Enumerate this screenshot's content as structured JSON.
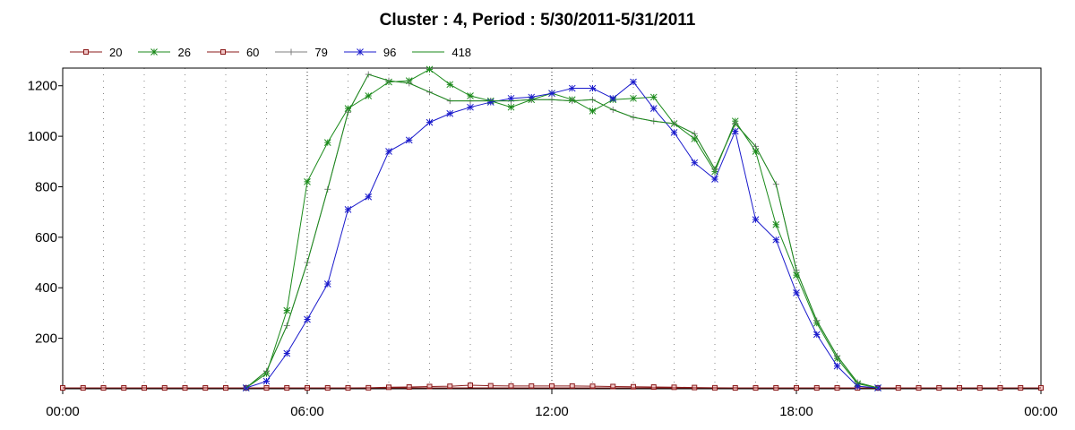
{
  "chart_data": {
    "type": "line",
    "title": "Cluster : 4, Period : 5/30/2011-5/31/2011",
    "xlabel": "",
    "ylabel": "",
    "x_ticks": [
      "00:00",
      "06:00",
      "12:00",
      "18:00",
      "00:00"
    ],
    "y_ticks": [
      200,
      400,
      600,
      800,
      1000,
      1200
    ],
    "xlim_hours": [
      0,
      24
    ],
    "ylim": [
      0,
      1270
    ],
    "grid": "vertical dotted lines every hour",
    "legend_position": "top-left",
    "series": [
      {
        "name": "20",
        "color": "#8b1a1a",
        "marker": "square",
        "x": [
          0,
          0.5,
          1,
          1.5,
          2,
          2.5,
          3,
          3.5,
          4,
          4.5,
          5,
          5.5,
          6,
          6.5,
          7,
          7.5,
          8,
          8.5,
          9,
          9.5,
          10,
          10.5,
          11,
          11.5,
          12,
          12.5,
          13,
          13.5,
          14,
          14.5,
          15,
          15.5,
          16,
          16.5,
          17,
          17.5,
          18,
          18.5,
          19,
          19.5,
          20,
          20.5,
          21,
          21.5,
          22,
          22.5,
          23,
          23.5,
          24
        ],
        "y": [
          0,
          0,
          0,
          0,
          0,
          0,
          0,
          0,
          0,
          0,
          0,
          0,
          0,
          2,
          3,
          4,
          6,
          7,
          9,
          10,
          14,
          12,
          11,
          11,
          11,
          11,
          10,
          9,
          8,
          7,
          6,
          5,
          4,
          3,
          3,
          2,
          0,
          0,
          0,
          0,
          0,
          0,
          0,
          0,
          0,
          0,
          0,
          0,
          0
        ]
      },
      {
        "name": "26",
        "color": "#1a8a1a",
        "marker": "asterisk",
        "x": [
          4.5,
          5,
          5.5,
          6,
          6.5,
          7,
          7.5,
          8,
          8.5,
          9,
          9.5,
          10,
          10.5,
          11,
          11.5,
          12,
          12.5,
          13,
          13.5,
          14,
          14.5,
          15,
          15.5,
          16,
          16.5,
          17,
          17.5,
          18,
          18.5,
          19,
          19.5,
          20
        ],
        "y": [
          0,
          60,
          310,
          820,
          975,
          1110,
          1160,
          1215,
          1220,
          1265,
          1205,
          1160,
          1140,
          1115,
          1145,
          1170,
          1145,
          1100,
          1145,
          1150,
          1155,
          1050,
          990,
          860,
          1060,
          940,
          650,
          450,
          260,
          120,
          20,
          0
        ]
      },
      {
        "name": "60",
        "color": "#8b1a1a",
        "marker": "square",
        "x": [
          0,
          24
        ],
        "y": [
          0,
          0
        ]
      },
      {
        "name": "79",
        "color": "#7f7f7f",
        "marker": "plus",
        "x": [
          4.5,
          5,
          5.5,
          6,
          6.5,
          7,
          7.5,
          8,
          8.5,
          9,
          9.5,
          10,
          10.5,
          11,
          11.5,
          12,
          12.5,
          13,
          13.5,
          14,
          14.5,
          15,
          15.5,
          16,
          16.5,
          17,
          17.5,
          18,
          18.5,
          19,
          19.5,
          20
        ],
        "y": [
          0,
          70,
          250,
          500,
          790,
          1095,
          1245,
          1220,
          1210,
          1175,
          1140,
          1140,
          1140,
          1140,
          1145,
          1145,
          1140,
          1145,
          1105,
          1075,
          1060,
          1050,
          1010,
          870,
          1050,
          960,
          810,
          470,
          270,
          130,
          25,
          0
        ]
      },
      {
        "name": "96",
        "color": "#1a1acc",
        "marker": "asterisk",
        "x": [
          4.5,
          5,
          5.5,
          6,
          6.5,
          7,
          7.5,
          8,
          8.5,
          9,
          9.5,
          10,
          10.5,
          11,
          11.5,
          12,
          12.5,
          13,
          13.5,
          14,
          14.5,
          15,
          15.5,
          16,
          16.5,
          17,
          17.5,
          18,
          18.5,
          19,
          19.5,
          20
        ],
        "y": [
          0,
          30,
          140,
          275,
          415,
          710,
          760,
          940,
          985,
          1055,
          1090,
          1115,
          1135,
          1150,
          1155,
          1170,
          1190,
          1190,
          1150,
          1215,
          1110,
          1015,
          895,
          830,
          1020,
          670,
          590,
          380,
          215,
          90,
          10,
          0
        ]
      },
      {
        "name": "418",
        "color": "#1a8a1a",
        "marker": "none",
        "x": [
          4.5,
          5,
          5.5,
          6,
          6.5,
          7,
          7.5,
          8,
          8.5,
          9,
          9.5,
          10,
          10.5,
          11,
          11.5,
          12,
          12.5,
          13,
          13.5,
          14,
          14.5,
          15,
          15.5,
          16,
          16.5,
          17,
          17.5,
          18,
          18.5,
          19,
          19.5,
          20
        ],
        "y": [
          0,
          70,
          250,
          500,
          790,
          1095,
          1245,
          1220,
          1210,
          1175,
          1140,
          1140,
          1140,
          1140,
          1145,
          1145,
          1140,
          1145,
          1105,
          1075,
          1060,
          1050,
          1010,
          870,
          1050,
          960,
          810,
          470,
          270,
          130,
          25,
          0
        ]
      }
    ]
  }
}
